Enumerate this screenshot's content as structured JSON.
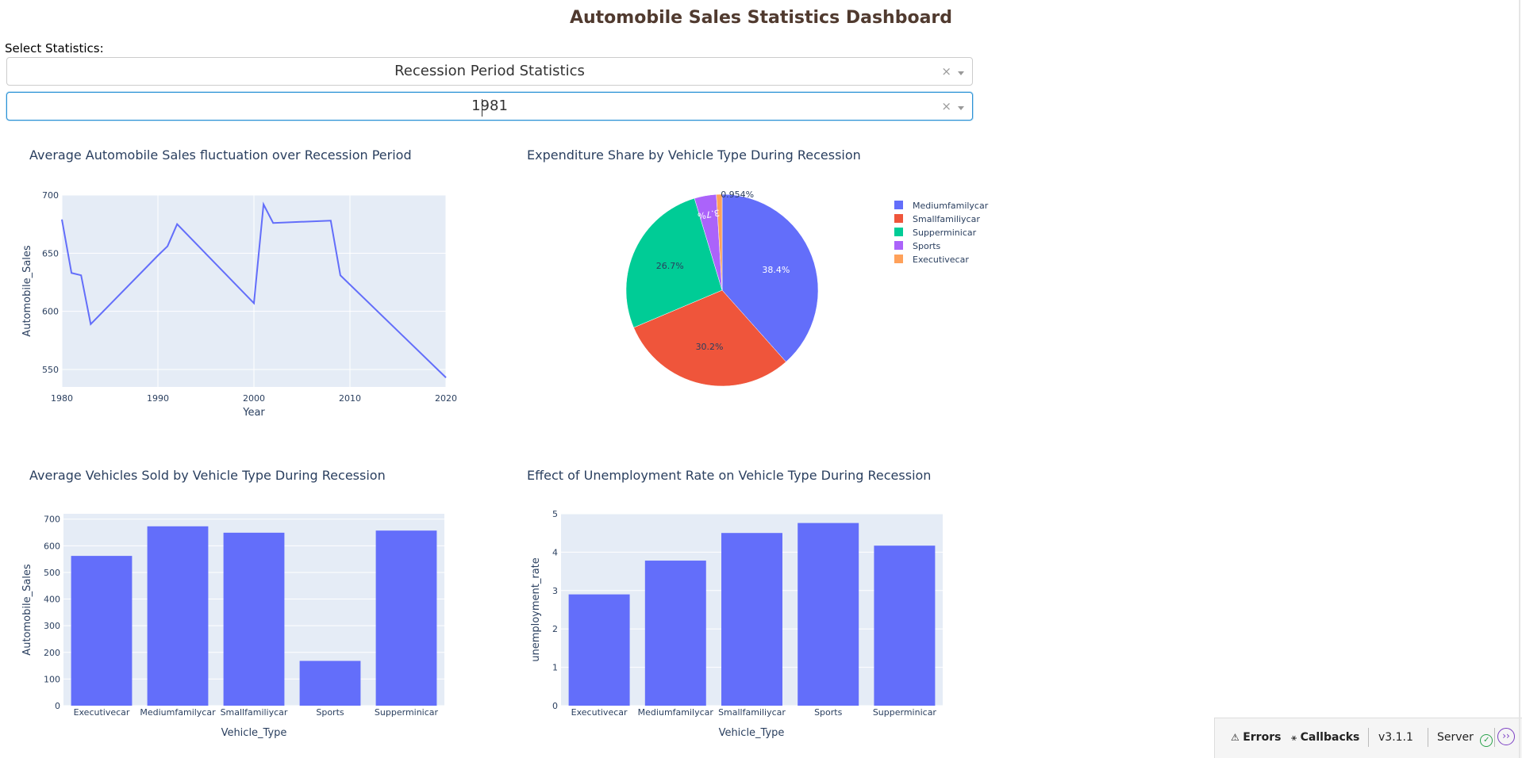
{
  "header": {
    "title": "Automobile Sales Statistics Dashboard"
  },
  "controls": {
    "label": "Select Statistics:",
    "statistics_dropdown": {
      "value": "Recession Period Statistics"
    },
    "year_dropdown": {
      "value": "1981"
    },
    "clear_glyph": "×"
  },
  "charts": {
    "line": {
      "title": "Average Automobile Sales fluctuation over Recession Period",
      "xlabel": "Year",
      "ylabel": "Automobile_Sales",
      "color": "#636efa"
    },
    "pie": {
      "title": "Expenditure Share by Vehicle Type During Recession"
    },
    "bar_sales": {
      "title": "Average Vehicles Sold by Vehicle Type During Recession",
      "xlabel": "Vehicle_Type",
      "ylabel": "Automobile_Sales"
    },
    "bar_unemp": {
      "title": "Effect of Unemployment Rate on Vehicle Type During Recession",
      "xlabel": "Vehicle_Type",
      "ylabel": "unemployment_rate"
    }
  },
  "chart_data": [
    {
      "type": "line",
      "title": "Average Automobile Sales fluctuation over Recession Period",
      "xlabel": "Year",
      "ylabel": "Automobile_Sales",
      "x": [
        1980,
        1981,
        1982,
        1983,
        1990,
        1991,
        1992,
        2000,
        2001,
        2002,
        2008,
        2009,
        2020
      ],
      "y": [
        679,
        633,
        631,
        589,
        648,
        656,
        675,
        607,
        692,
        676,
        678,
        631,
        543
      ],
      "xlim": [
        1980,
        2020
      ],
      "ylim": [
        535,
        700
      ],
      "xticks": [
        1980,
        1990,
        2000,
        2010,
        2020
      ],
      "yticks": [
        550,
        600,
        650,
        700
      ],
      "grid": true
    },
    {
      "type": "pie",
      "title": "Expenditure Share by Vehicle Type During Recession",
      "labels": [
        "Mediumfamilycar",
        "Smallfamiliycar",
        "Supperminicar",
        "Sports",
        "Executivecar"
      ],
      "values": [
        38.4,
        30.2,
        26.7,
        3.7,
        0.954
      ],
      "value_labels": [
        "38.4%",
        "30.2%",
        "26.7%",
        "3.7%",
        "0.954%"
      ],
      "colors": [
        "#636efa",
        "#ef553b",
        "#00cc96",
        "#ab63fa",
        "#ffa15a"
      ],
      "legend": "right"
    },
    {
      "type": "bar",
      "title": "Average Vehicles Sold by Vehicle Type During Recession",
      "xlabel": "Vehicle_Type",
      "ylabel": "Automobile_Sales",
      "categories": [
        "Executivecar",
        "Mediumfamilycar",
        "Smallfamiliycar",
        "Sports",
        "Supperminicar"
      ],
      "values": [
        562,
        673,
        649,
        168,
        657
      ],
      "ylim": [
        0,
        720
      ],
      "yticks": [
        0,
        100,
        200,
        300,
        400,
        500,
        600,
        700
      ],
      "color": "#636efa",
      "grid": true
    },
    {
      "type": "bar",
      "title": "Effect of Unemployment Rate on Vehicle Type During Recession",
      "xlabel": "Vehicle_Type",
      "ylabel": "unemployment_rate",
      "categories": [
        "Executivecar",
        "Mediumfamilycar",
        "Smallfamiliycar",
        "Sports",
        "Supperminicar"
      ],
      "values": [
        2.9,
        3.78,
        4.5,
        4.76,
        4.17
      ],
      "ylim": [
        0,
        5
      ],
      "yticks": [
        0,
        1,
        2,
        3,
        4,
        5
      ],
      "color": "#636efa",
      "grid": true
    }
  ],
  "debug_bar": {
    "errors_label": "Errors",
    "callbacks_label": "Callbacks",
    "version": "v3.1.1",
    "server_label": "Server",
    "icons": [
      "warning-icon",
      "callbacks-icon",
      "check-circle-icon",
      "expand-chevron-icon"
    ]
  }
}
